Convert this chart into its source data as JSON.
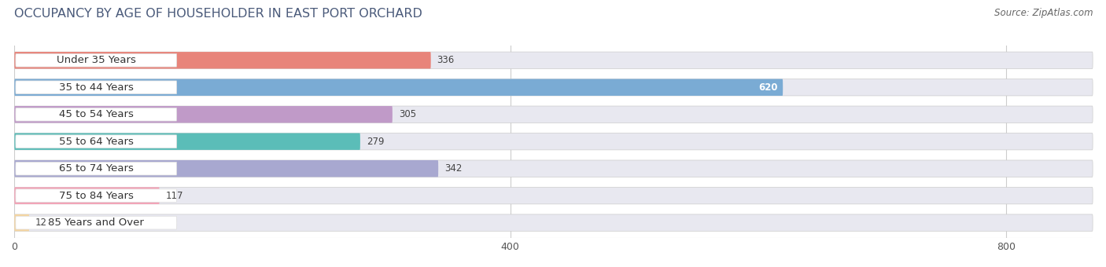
{
  "title": "OCCUPANCY BY AGE OF HOUSEHOLDER IN EAST PORT ORCHARD",
  "source": "Source: ZipAtlas.com",
  "categories": [
    "Under 35 Years",
    "35 to 44 Years",
    "45 to 54 Years",
    "55 to 64 Years",
    "65 to 74 Years",
    "75 to 84 Years",
    "85 Years and Over"
  ],
  "values": [
    336,
    620,
    305,
    279,
    342,
    117,
    12
  ],
  "bar_colors": [
    "#E8847A",
    "#7AABD4",
    "#C09AC8",
    "#5BBDB8",
    "#A8A8D0",
    "#F4A0B4",
    "#F5D5A0"
  ],
  "xlim": [
    0,
    870
  ],
  "xticks": [
    0,
    400,
    800
  ],
  "bar_height": 0.62,
  "background_color": "#ffffff",
  "bar_bg_color": "#e8e8f0",
  "title_fontsize": 11.5,
  "label_fontsize": 9.5,
  "value_fontsize": 8.5,
  "label_pill_color": "#ffffff",
  "rounding_size": 0.25
}
